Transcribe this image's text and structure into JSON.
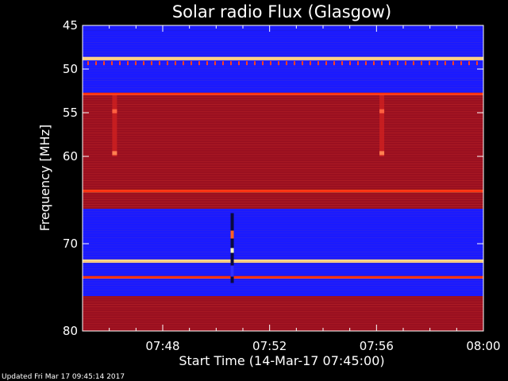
{
  "footer": {
    "updated": "Updated Fri Mar 17 09:45:14 2017"
  },
  "chart_data": {
    "type": "heatmap",
    "title": "Solar radio Flux (Glasgow)",
    "xlabel": "Start Time (14-Mar-17 07:45:00)",
    "ylabel": "Frequency [MHz]",
    "x_range": [
      "07:45:00",
      "08:00:00"
    ],
    "y_range": [
      45,
      80
    ],
    "y_ticks": [
      45,
      50,
      55,
      60,
      70,
      80
    ],
    "x_ticks": [
      "07:48",
      "07:52",
      "07:56",
      "08:00"
    ],
    "x_tick_minutes": [
      3,
      7,
      11,
      15
    ],
    "total_minutes": 15,
    "colors": {
      "background": "#000000",
      "low": "#1a1aff",
      "mid": "#9a1020",
      "high": "#ff3010",
      "peak": "#ffd890"
    },
    "frequency_bands": [
      {
        "from": 45.0,
        "to": 45.6,
        "level": "low"
      },
      {
        "from": 45.6,
        "to": 48.6,
        "level": "low"
      },
      {
        "from": 48.6,
        "to": 49.0,
        "level": "peak"
      },
      {
        "from": 49.0,
        "to": 52.7,
        "level": "low"
      },
      {
        "from": 52.7,
        "to": 53.0,
        "level": "high"
      },
      {
        "from": 53.0,
        "to": 63.8,
        "level": "mid"
      },
      {
        "from": 63.8,
        "to": 64.1,
        "level": "high"
      },
      {
        "from": 64.1,
        "to": 66.0,
        "level": "mid"
      },
      {
        "from": 66.0,
        "to": 71.8,
        "level": "low"
      },
      {
        "from": 71.8,
        "to": 72.2,
        "level": "peak"
      },
      {
        "from": 72.2,
        "to": 73.7,
        "level": "low"
      },
      {
        "from": 73.7,
        "to": 74.0,
        "level": "high"
      },
      {
        "from": 74.0,
        "to": 76.0,
        "level": "low"
      },
      {
        "from": 76.0,
        "to": 80.0,
        "level": "mid"
      }
    ],
    "vertical_streaks": [
      {
        "minute": 1.2,
        "from_freq": 53.0,
        "to_freq": 60.0
      },
      {
        "minute": 11.2,
        "from_freq": 53.0,
        "to_freq": 60.0
      }
    ],
    "burst": {
      "minute": 5.6,
      "from_freq": 66.5,
      "to_freq": 74.5
    }
  }
}
